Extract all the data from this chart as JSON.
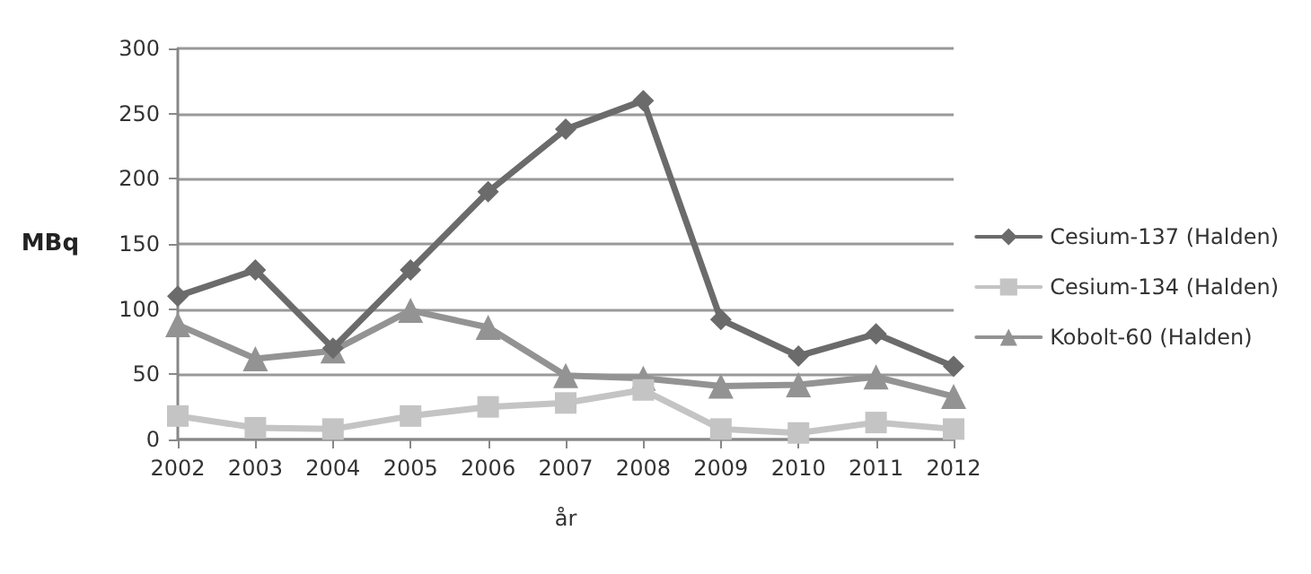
{
  "chart_data": {
    "type": "line",
    "xlabel": "år",
    "ylabel": "MBq",
    "categories": [
      "2002",
      "2003",
      "2004",
      "2005",
      "2006",
      "2007",
      "2008",
      "2009",
      "2010",
      "2011",
      "2012"
    ],
    "series": [
      {
        "name": "Cesium-137 (Halden)",
        "color": "#6b6b6b",
        "marker": "diamond",
        "values": [
          110,
          130,
          70,
          130,
          190,
          238,
          260,
          92,
          64,
          81,
          56
        ]
      },
      {
        "name": "Cesium-134 (Halden)",
        "color": "#c4c4c4",
        "marker": "square",
        "values": [
          18,
          9,
          8,
          18,
          25,
          28,
          38,
          8,
          5,
          13,
          8
        ]
      },
      {
        "name": "Kobolt-60 (Halden)",
        "color": "#939393",
        "marker": "triangle",
        "values": [
          88,
          62,
          68,
          99,
          86,
          49,
          47,
          41,
          42,
          48,
          33
        ]
      }
    ],
    "ylim": [
      0,
      300
    ],
    "yticks": [
      0,
      50,
      100,
      150,
      200,
      250,
      300
    ],
    "grid": "y",
    "legend": "right"
  }
}
